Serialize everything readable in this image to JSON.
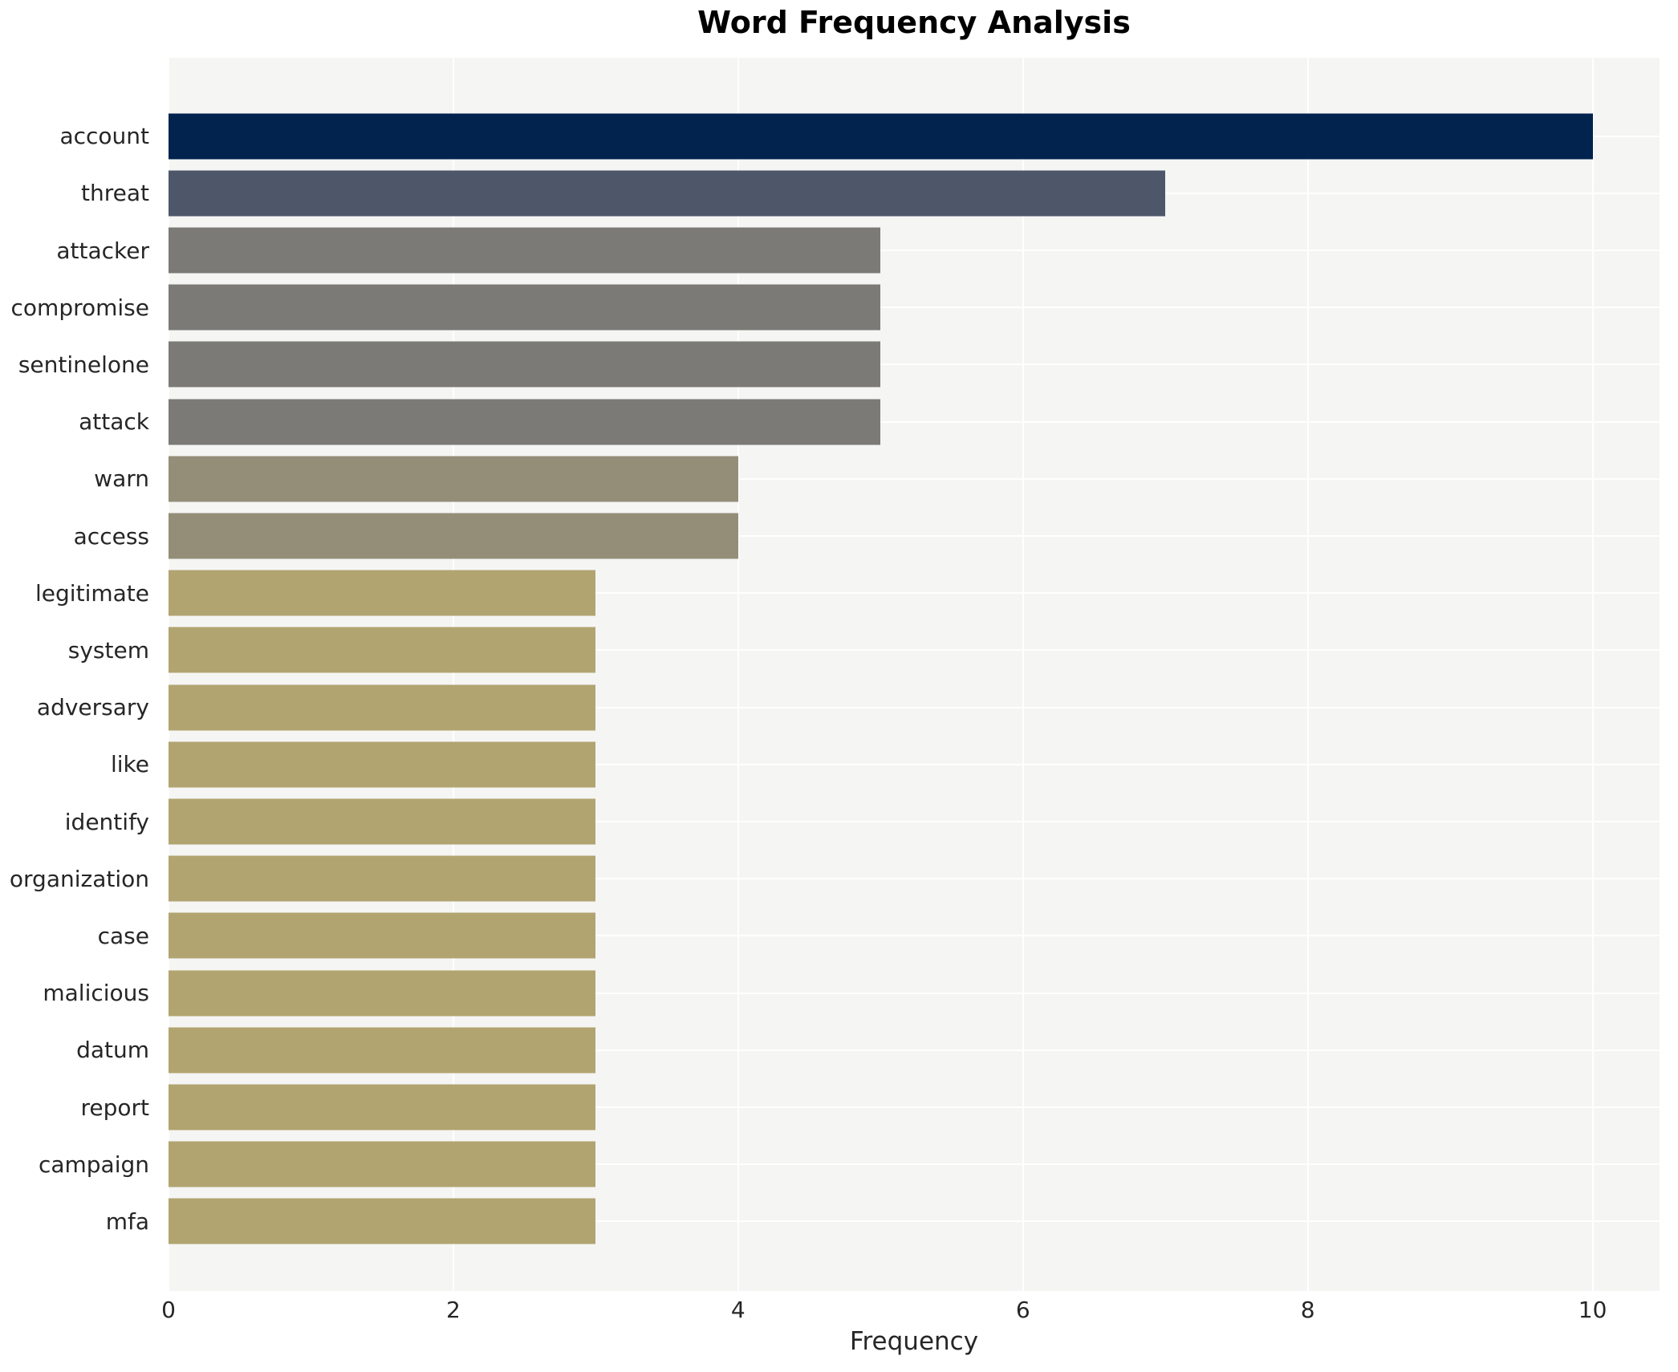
{
  "chart_data": {
    "type": "bar",
    "orientation": "horizontal",
    "title": "Word Frequency Analysis",
    "xlabel": "Frequency",
    "ylabel": "",
    "categories": [
      "account",
      "threat",
      "attacker",
      "compromise",
      "sentinelone",
      "attack",
      "warn",
      "access",
      "legitimate",
      "system",
      "adversary",
      "like",
      "identify",
      "organization",
      "case",
      "malicious",
      "datum",
      "report",
      "campaign",
      "mfa"
    ],
    "values": [
      10,
      7,
      5,
      5,
      5,
      5,
      4,
      4,
      3,
      3,
      3,
      3,
      3,
      3,
      3,
      3,
      3,
      3,
      3,
      3
    ],
    "bar_colors": [
      "#02234e",
      "#4e576a",
      "#7b7a76",
      "#7b7a76",
      "#7b7a76",
      "#7b7a76",
      "#948e78",
      "#948e78",
      "#b1a470",
      "#b1a470",
      "#b1a470",
      "#b1a470",
      "#b1a470",
      "#b1a470",
      "#b1a470",
      "#b1a470",
      "#b1a470",
      "#b1a470",
      "#b1a470",
      "#b1a470"
    ],
    "xticks": [
      0,
      2,
      4,
      6,
      8,
      10
    ],
    "xlim": [
      0,
      10.47
    ],
    "grid": "major-vertical-and-category-horizontal",
    "gridline_color": "#ffffff",
    "panel_background": "#f5f5f4",
    "outer_background": "#ffffff",
    "text_color": "#262626",
    "legend": "none"
  }
}
